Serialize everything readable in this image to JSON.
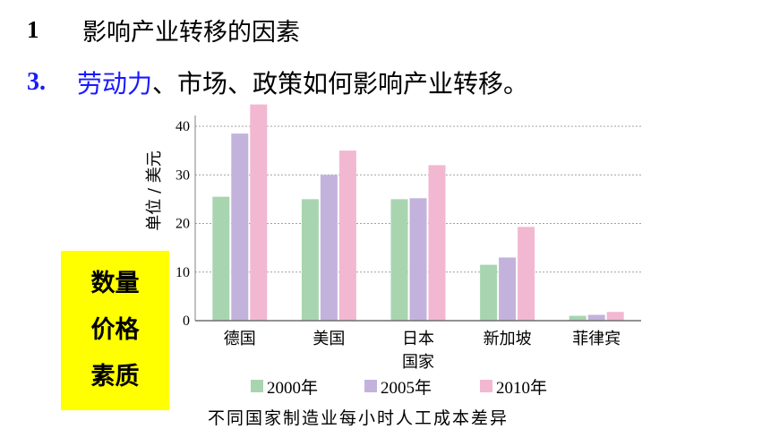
{
  "header": {
    "section_num": "1",
    "section_title": "影响产业转移的因素",
    "item_num": "3.",
    "item_highlight": "劳动力",
    "item_rest": "、市场、政策如何影响产业转移。"
  },
  "sidebar_note": {
    "items": [
      "数量",
      "价格",
      "素质"
    ]
  },
  "chart_data": {
    "type": "bar",
    "title": "不同国家制造业每小时人工成本差异",
    "ylabel": "单位 / 美元",
    "ylim": [
      0,
      40
    ],
    "yticks": [
      0,
      10,
      20,
      30,
      40
    ],
    "grid": true,
    "legend_position": "bottom",
    "categories": [
      "德国",
      "美国",
      "日本国家",
      "新加坡",
      "菲律宾"
    ],
    "series": [
      {
        "name": "2000年",
        "color": "#a8d5b0",
        "values": [
          25.5,
          25,
          25,
          11.5,
          1
        ]
      },
      {
        "name": "2005年",
        "color": "#c3b3dc",
        "values": [
          38.5,
          30,
          25.2,
          13,
          1.2
        ]
      },
      {
        "name": "2010年",
        "color": "#f2b8d1",
        "values": [
          44.5,
          35,
          32,
          19.3,
          1.8
        ]
      }
    ]
  }
}
